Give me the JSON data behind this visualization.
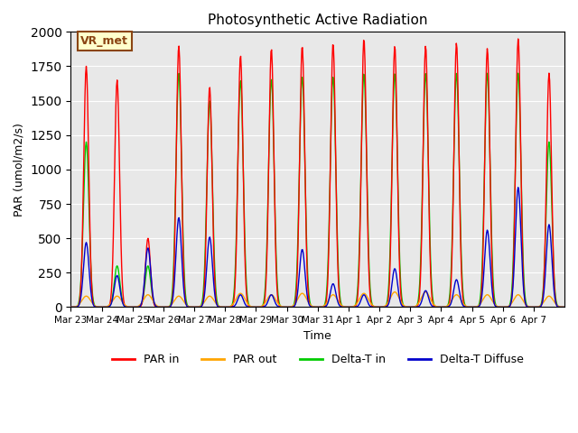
{
  "title": "Photosynthetic Active Radiation",
  "ylabel": "PAR (umol/m2/s)",
  "xlabel": "Time",
  "ylim": [
    0,
    2000
  ],
  "bg_color": "#e8e8e8",
  "annotation_text": "VR_met",
  "annotation_bg": "#ffffcc",
  "annotation_border": "#8B4513",
  "series_colors": {
    "PAR in": "#ff0000",
    "PAR out": "#ffa500",
    "Delta-T in": "#00cc00",
    "Delta-T Diffuse": "#0000cc"
  },
  "x_tick_labels": [
    "Mar 23",
    "Mar 24",
    "Mar 25",
    "Mar 26",
    "Mar 27",
    "Mar 28",
    "Mar 29",
    "Mar 30",
    "Mar 31",
    "Apr 1",
    "Apr 2",
    "Apr 3",
    "Apr 4",
    "Apr 5",
    "Apr 6",
    "Apr 7"
  ],
  "n_days": 16,
  "par_in_peaks": [
    1750,
    1650,
    500,
    1900,
    1600,
    1830,
    1880,
    1900,
    1920,
    1950,
    1900,
    1900,
    1920,
    1880,
    1950,
    1700
  ],
  "par_out_peaks": [
    80,
    80,
    90,
    80,
    80,
    100,
    90,
    100,
    90,
    100,
    110,
    110,
    90,
    90,
    90,
    80
  ],
  "delta_t_in_peaks": [
    1200,
    300,
    300,
    1700,
    1500,
    1650,
    1660,
    1680,
    1680,
    1700,
    1700,
    1700,
    1700,
    1700,
    1700,
    1200
  ],
  "delta_t_diff_peaks": [
    470,
    230,
    430,
    650,
    510,
    90,
    90,
    420,
    170,
    90,
    280,
    120,
    200,
    560,
    870,
    600
  ]
}
